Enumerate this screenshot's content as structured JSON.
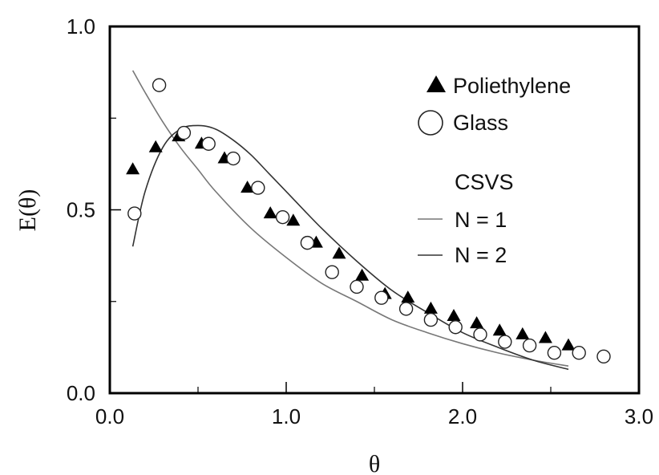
{
  "chart_data": {
    "type": "scatter",
    "xlabel": "θ",
    "ylabel": "E(θ)",
    "xlim": [
      0,
      3.0
    ],
    "ylim": [
      0,
      1.0
    ],
    "x_ticks": [
      {
        "value": 0.0,
        "label": "0.0"
      },
      {
        "value": 1.0,
        "label": "1.0"
      },
      {
        "value": 2.0,
        "label": "2.0"
      },
      {
        "value": 3.0,
        "label": "3.0"
      }
    ],
    "x_minor_ticks": [
      0.5,
      1.5,
      2.5
    ],
    "y_ticks": [
      {
        "value": 0.0,
        "label": "0.0"
      },
      {
        "value": 0.5,
        "label": "0.5"
      },
      {
        "value": 1.0,
        "label": "1.0"
      }
    ],
    "y_minor_ticks": [
      0.25,
      0.75
    ],
    "grid": false,
    "legend_position": "top-right",
    "series": [
      {
        "name": "Poliethylene",
        "marker": "filled-triangle",
        "x": [
          0.13,
          0.26,
          0.39,
          0.52,
          0.65,
          0.78,
          0.91,
          1.04,
          1.17,
          1.3,
          1.43,
          1.56,
          1.69,
          1.82,
          1.95,
          2.08,
          2.21,
          2.34,
          2.47,
          2.6
        ],
        "y": [
          0.61,
          0.67,
          0.7,
          0.68,
          0.64,
          0.56,
          0.49,
          0.47,
          0.41,
          0.38,
          0.32,
          0.27,
          0.26,
          0.23,
          0.21,
          0.19,
          0.17,
          0.16,
          0.15,
          0.13
        ]
      },
      {
        "name": "Glass",
        "marker": "open-circle",
        "x": [
          0.14,
          0.28,
          0.42,
          0.56,
          0.7,
          0.84,
          0.98,
          1.12,
          1.26,
          1.4,
          1.54,
          1.68,
          1.82,
          1.96,
          2.1,
          2.24,
          2.38,
          2.52,
          2.66,
          2.8
        ],
        "y": [
          0.49,
          0.84,
          0.71,
          0.68,
          0.64,
          0.56,
          0.48,
          0.41,
          0.33,
          0.29,
          0.26,
          0.23,
          0.2,
          0.18,
          0.16,
          0.14,
          0.13,
          0.11,
          0.11,
          0.1
        ]
      },
      {
        "name": "N = 1",
        "marker": "line",
        "x": [
          0.13,
          0.2,
          0.3,
          0.4,
          0.5,
          0.6,
          0.8,
          1.0,
          1.2,
          1.4,
          1.6,
          1.8,
          2.0,
          2.2,
          2.4,
          2.6
        ],
        "y": [
          0.88,
          0.82,
          0.74,
          0.67,
          0.61,
          0.55,
          0.45,
          0.37,
          0.3,
          0.25,
          0.2,
          0.165,
          0.135,
          0.11,
          0.09,
          0.074
        ]
      },
      {
        "name": "N = 2",
        "marker": "line",
        "x": [
          0.13,
          0.2,
          0.3,
          0.4,
          0.5,
          0.6,
          0.7,
          0.8,
          0.9,
          1.0,
          1.2,
          1.4,
          1.6,
          1.8,
          2.0,
          2.2,
          2.4,
          2.6
        ],
        "y": [
          0.4,
          0.55,
          0.67,
          0.72,
          0.73,
          0.72,
          0.69,
          0.65,
          0.6,
          0.55,
          0.45,
          0.36,
          0.28,
          0.22,
          0.165,
          0.125,
          0.09,
          0.065
        ]
      }
    ],
    "legend": {
      "poly_label": "Poliethylene",
      "glass_label": "Glass",
      "group_title": "CSVS",
      "n1_label": "N = 1",
      "n2_label": "N = 2"
    }
  }
}
